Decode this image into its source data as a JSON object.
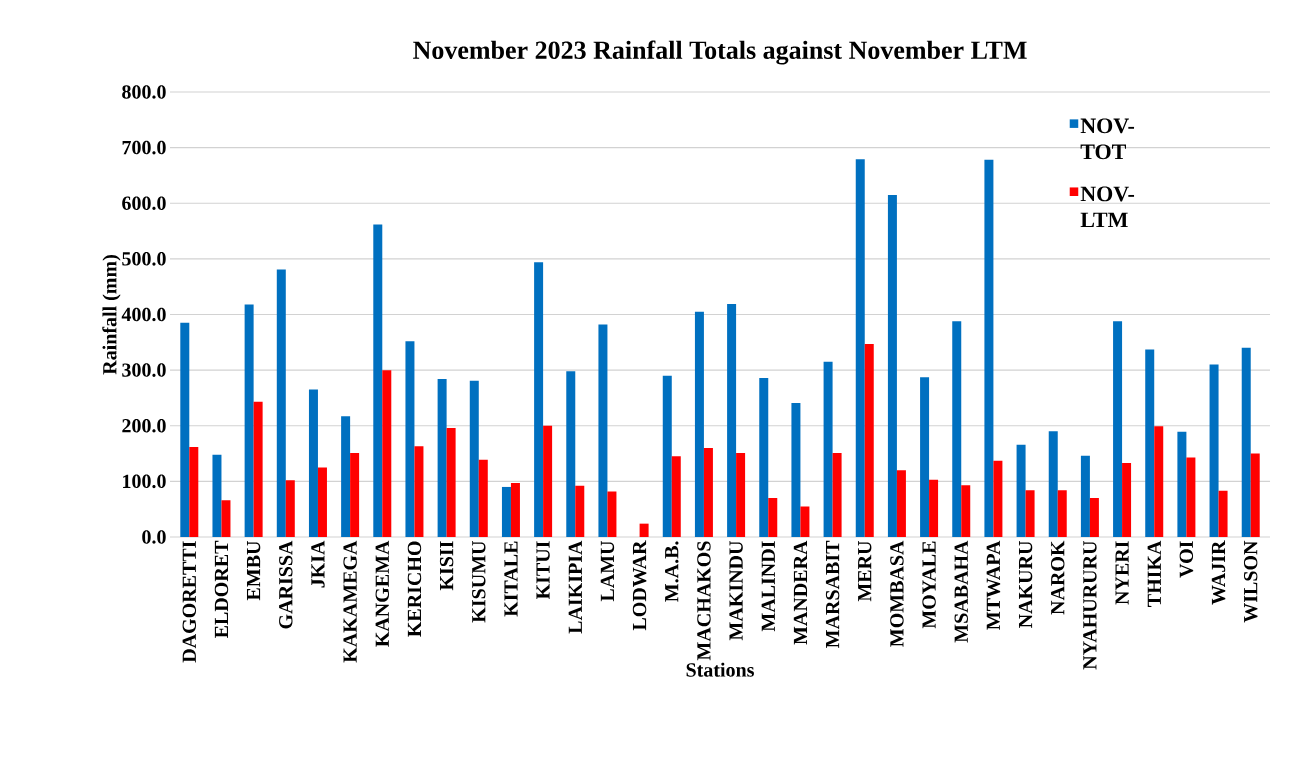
{
  "chart_data": {
    "type": "bar",
    "title": "November 2023 Rainfall Totals against November LTM",
    "xlabel": "Stations",
    "ylabel": "Rainfall (mm)",
    "categories": [
      "DAGORETTI",
      "ELDORET",
      "EMBU",
      "GARISSA",
      "JKIA",
      "KAKAMEGA",
      "KANGEMA",
      "KERICHO",
      "KISII",
      "KISUMU",
      "KITALE",
      "KITUI",
      "LAIKIPIA",
      "LAMU",
      "LODWAR",
      "M.A.B.",
      "MACHAKOS",
      "MAKINDU",
      "MALINDI",
      "MANDERA",
      "MARSABIT",
      "MERU",
      "MOMBASA",
      "MOYALE",
      "MSABAHA",
      "MTWAPA",
      "NAKURU",
      "NAROK",
      "NYAHURURU",
      "NYERI",
      "THIKA",
      "VOI",
      "WAJIR",
      "WILSON"
    ],
    "series": [
      {
        "name": "NOV-TOT",
        "color": "#0070c0",
        "values": [
          385,
          148,
          418,
          481,
          265,
          217,
          562,
          352,
          284,
          281,
          90,
          494,
          298,
          382,
          null,
          290,
          405,
          419,
          286,
          241,
          315,
          679,
          615,
          287,
          388,
          678,
          166,
          190,
          146,
          388,
          337,
          189,
          310,
          340
        ]
      },
      {
        "name": "NOV-LTM",
        "color": "#ff0000",
        "values": [
          162,
          66,
          243,
          102,
          125,
          151,
          300,
          163,
          196,
          139,
          97,
          200,
          92,
          82,
          24,
          145,
          160,
          151,
          70,
          55,
          151,
          347,
          120,
          103,
          93,
          137,
          84,
          84,
          70,
          133,
          199,
          143,
          83,
          150
        ]
      }
    ],
    "ylim": [
      0,
      800
    ],
    "yticks": [
      {
        "value": 0,
        "label": "0.0"
      },
      {
        "value": 100,
        "label": "100.0"
      },
      {
        "value": 200,
        "label": "200.0"
      },
      {
        "value": 300,
        "label": "300.0"
      },
      {
        "value": 400,
        "label": "400.0"
      },
      {
        "value": 500,
        "label": "500.0"
      },
      {
        "value": 600,
        "label": "600.0"
      },
      {
        "value": 700,
        "label": "700.0"
      },
      {
        "value": 800,
        "label": "800.0"
      }
    ],
    "grid": "y",
    "legend": "top right"
  }
}
